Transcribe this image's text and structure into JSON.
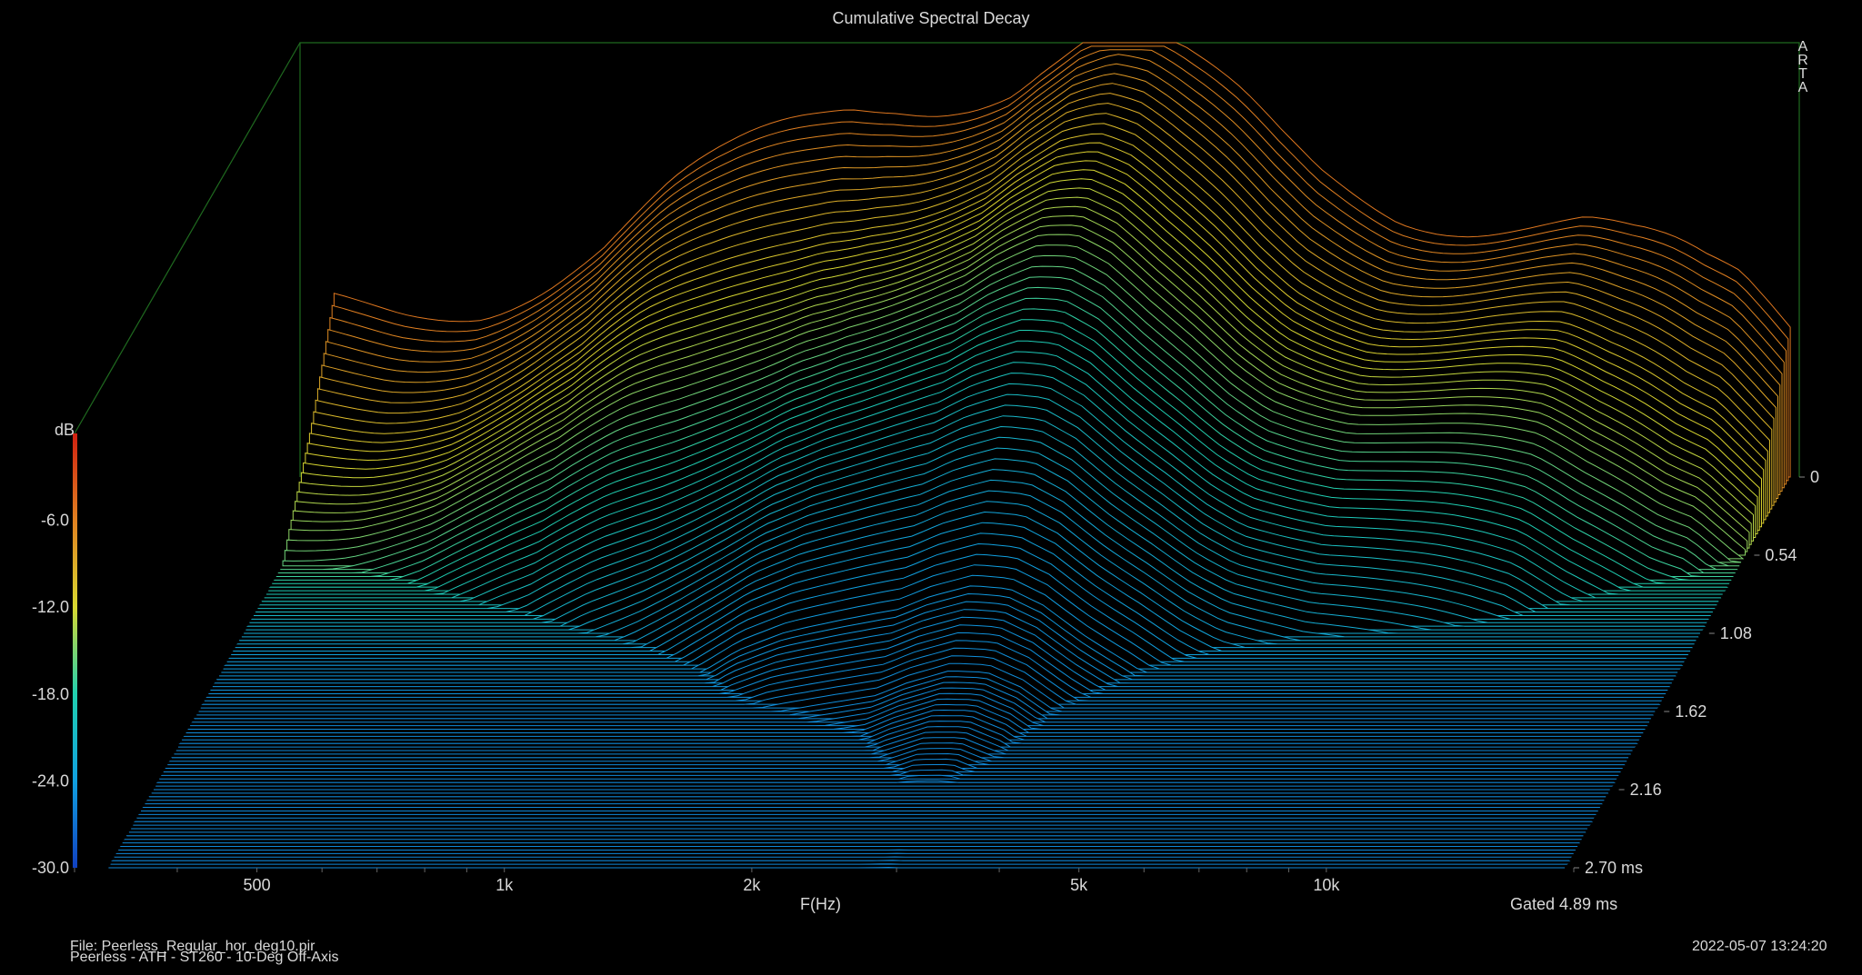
{
  "title": "Cumulative Spectral Decay",
  "brand": [
    "A",
    "R",
    "T",
    "A"
  ],
  "footer": {
    "file": "File: Peerless_Regular_hor_deg10.pir",
    "description": "Peerless - ATH - ST260 - 10-Deg Off-Axis",
    "datetime": "2022-05-07  13:24:20",
    "gated": "Gated 4.89 ms"
  },
  "chart_data": {
    "type": "waterfall",
    "title": "Cumulative Spectral Decay",
    "xlabel": "F(Hz)",
    "ylabel": "dB",
    "zlabel": "ms",
    "x_scale": "log",
    "xlim": [
      300,
      20000
    ],
    "ylim": [
      -30,
      0
    ],
    "zlim": [
      0,
      2.7
    ],
    "x_ticks": [
      {
        "value": 500,
        "label": "500"
      },
      {
        "value": 1000,
        "label": "1k"
      },
      {
        "value": 2000,
        "label": "2k"
      },
      {
        "value": 5000,
        "label": "5k"
      },
      {
        "value": 10000,
        "label": "10k"
      }
    ],
    "y_ticks": [
      {
        "value": -6,
        "label": "-6.0"
      },
      {
        "value": -12,
        "label": "-12.0"
      },
      {
        "value": -18,
        "label": "-18.0"
      },
      {
        "value": -24,
        "label": "-24.0"
      },
      {
        "value": -30,
        "label": "-30.0"
      }
    ],
    "z_ticks": [
      {
        "value": 0,
        "label": "0"
      },
      {
        "value": 0.54,
        "label": "0.54"
      },
      {
        "value": 1.08,
        "label": "1.08"
      },
      {
        "value": 1.62,
        "label": "1.62"
      },
      {
        "value": 2.16,
        "label": "2.16"
      },
      {
        "value": 2.7,
        "label": "2.70 ms"
      }
    ],
    "colormap": [
      "#1040c0",
      "#10a0e0",
      "#20d0b0",
      "#d8d830",
      "#e08020",
      "#d02010"
    ],
    "frequencies": [
      330,
      400,
      500,
      600,
      700,
      850,
      1000,
      1200,
      1400,
      1600,
      1800,
      2000,
      2200,
      2400,
      2700,
      3000,
      3300,
      3700,
      4200,
      4700,
      5200,
      5800,
      6500,
      7200,
      8000,
      9000,
      10000,
      11000,
      12500,
      14000,
      15500,
      17000,
      18500,
      19500
    ],
    "initial_response_db": [
      -18.5,
      -18,
      -17,
      -15.5,
      -14,
      -11,
      -9,
      -6.5,
      -4.5,
      -3.5,
      -3,
      -2.5,
      -2,
      -1,
      0,
      0,
      -1,
      -3,
      -5,
      -7,
      -8.5,
      -9.5,
      -10.5,
      -11,
      -11.5,
      -12,
      -12.5,
      -13,
      -14.5,
      -15.5,
      -16.5,
      -17,
      -18.5,
      -19.5
    ],
    "decay_envelope": {
      "time_ms": [
        0,
        0.27,
        0.54,
        0.81,
        1.08,
        1.35,
        1.62,
        2.16,
        2.7
      ],
      "level_db": [
        0,
        -5,
        -9,
        -14,
        -19,
        -24,
        -27,
        -30,
        -30
      ]
    }
  }
}
